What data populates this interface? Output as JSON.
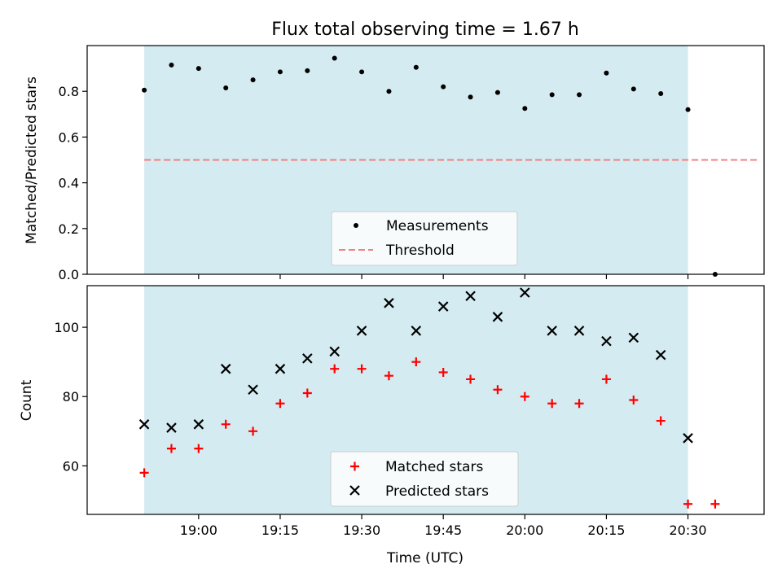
{
  "chart_data": [
    {
      "type": "scatter",
      "title": "Flux total observing time = 1.67 h",
      "ylabel": "Matched/Predicted stars",
      "xlabel": "",
      "ylim": [
        0,
        1.0
      ],
      "yticks": [
        "0.0",
        "0.2",
        "0.4",
        "0.6",
        "0.8"
      ],
      "x": [
        "18:50",
        "18:55",
        "19:00",
        "19:05",
        "19:10",
        "19:15",
        "19:20",
        "19:25",
        "19:30",
        "19:35",
        "19:40",
        "19:45",
        "19:50",
        "19:55",
        "20:00",
        "20:05",
        "20:10",
        "20:15",
        "20:20",
        "20:25",
        "20:30",
        "20:35",
        "20:40"
      ],
      "series": [
        {
          "name": "Measurements",
          "marker": "dot",
          "color": "#000000",
          "values": [
            0.805,
            0.915,
            0.9,
            0.815,
            0.85,
            0.885,
            0.89,
            0.945,
            0.885,
            0.8,
            0.905,
            0.82,
            0.775,
            0.795,
            0.725,
            0.785,
            0.785,
            0.88,
            0.81,
            0.79,
            0.72,
            0.0,
            null
          ]
        },
        {
          "name": "Threshold",
          "style": "dashed",
          "color": "#f08080",
          "x": [
            "18:50",
            "20:43"
          ],
          "values": [
            0.5,
            0.5
          ]
        }
      ],
      "shaded_span": [
        "18:50",
        "20:30"
      ],
      "shade_color": "#d4ebf1",
      "legend": "lower-center"
    },
    {
      "type": "scatter",
      "title": "",
      "ylabel": "Count",
      "xlabel": "Time (UTC)",
      "ylim": [
        46,
        112
      ],
      "yticks": [
        "60",
        "80",
        "100"
      ],
      "xticks": [
        "19:00",
        "19:15",
        "19:30",
        "19:45",
        "20:00",
        "20:15",
        "20:30"
      ],
      "x": [
        "18:50",
        "18:55",
        "19:00",
        "19:05",
        "19:10",
        "19:15",
        "19:20",
        "19:25",
        "19:30",
        "19:35",
        "19:40",
        "19:45",
        "19:50",
        "19:55",
        "20:00",
        "20:05",
        "20:10",
        "20:15",
        "20:20",
        "20:25",
        "20:30",
        "20:35"
      ],
      "series": [
        {
          "name": "Matched stars",
          "marker": "plus",
          "color": "#ff0000",
          "values": [
            58,
            65,
            65,
            72,
            70,
            78,
            81,
            88,
            88,
            86,
            90,
            87,
            85,
            82,
            80,
            78,
            78,
            85,
            79,
            73,
            49,
            49
          ]
        },
        {
          "name": "Predicted stars",
          "marker": "x",
          "color": "#000000",
          "values": [
            72,
            71,
            72,
            88,
            82,
            88,
            91,
            93,
            99,
            107,
            99,
            106,
            109,
            103,
            110,
            99,
            99,
            96,
            97,
            92,
            68,
            null
          ]
        }
      ],
      "shaded_span": [
        "18:50",
        "20:30"
      ],
      "shade_color": "#d4ebf1",
      "legend": "lower-center"
    }
  ]
}
